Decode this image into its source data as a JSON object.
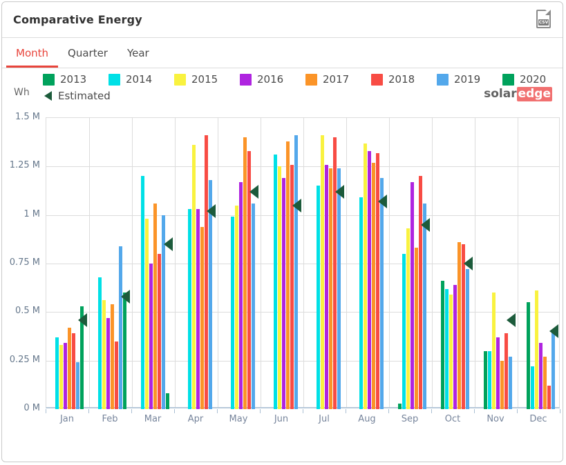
{
  "header": {
    "title": "Comparative Energy",
    "csv_label": "CSV"
  },
  "tabs": [
    {
      "label": "Month",
      "active": true
    },
    {
      "label": "Quarter",
      "active": false
    },
    {
      "label": "Year",
      "active": false
    }
  ],
  "logo": {
    "part1": "solar",
    "part2": "edge"
  },
  "colors": {
    "tab_active": "#e8443b",
    "estimated": "#1c5b3b",
    "logo_red": "#f17070",
    "axis_text": "#76849b",
    "grid": "#dcdcdc"
  },
  "chart_data": {
    "type": "bar",
    "title": "Comparative Energy",
    "unit_label": "Wh",
    "xlabel": "",
    "ylabel": "Wh",
    "ylim": [
      0,
      1.5
    ],
    "grid": true,
    "legend_position": "top",
    "categories": [
      "Jan",
      "Feb",
      "Mar",
      "Apr",
      "May",
      "Jun",
      "Jul",
      "Aug",
      "Sep",
      "Oct",
      "Nov",
      "Dec"
    ],
    "yticks": [
      "0 M",
      "0.25 M",
      "0.5 M",
      "0.75 M",
      "1 M",
      "1.25 M",
      "1.5 M"
    ],
    "value_unit": "M Wh",
    "series": [
      {
        "name": "2013",
        "color": "#00a25c",
        "values": [
          null,
          null,
          null,
          null,
          null,
          null,
          null,
          null,
          0.03,
          0.66,
          0.3,
          0.55
        ]
      },
      {
        "name": "2014",
        "color": "#00e0e6",
        "values": [
          0.37,
          0.68,
          1.2,
          1.03,
          0.99,
          1.31,
          1.15,
          1.09,
          0.8,
          0.62,
          0.3,
          0.22
        ]
      },
      {
        "name": "2015",
        "color": "#f9f23f",
        "values": [
          0.33,
          0.56,
          0.98,
          1.36,
          1.05,
          1.25,
          1.41,
          1.37,
          0.93,
          0.59,
          0.6,
          0.61
        ]
      },
      {
        "name": "2016",
        "color": "#af24e0",
        "values": [
          0.34,
          0.47,
          0.75,
          1.03,
          1.17,
          1.19,
          1.26,
          1.33,
          1.17,
          0.64,
          0.37,
          0.34
        ]
      },
      {
        "name": "2017",
        "color": "#fb9428",
        "values": [
          0.42,
          0.54,
          1.06,
          0.94,
          1.4,
          1.38,
          1.24,
          1.27,
          0.83,
          0.86,
          0.25,
          0.27
        ]
      },
      {
        "name": "2018",
        "color": "#f84c44",
        "values": [
          0.39,
          0.35,
          0.8,
          1.41,
          1.33,
          1.26,
          1.4,
          1.32,
          1.2,
          0.85,
          0.39,
          0.12
        ]
      },
      {
        "name": "2019",
        "color": "#53a8eb",
        "values": [
          0.24,
          0.84,
          1.0,
          1.18,
          1.06,
          1.41,
          1.24,
          1.19,
          1.06,
          0.72,
          0.27,
          0.41
        ]
      },
      {
        "name": "2020",
        "color": "#00a25c",
        "values": [
          0.53,
          0.6,
          0.08,
          null,
          null,
          null,
          null,
          null,
          null,
          null,
          null,
          null
        ]
      }
    ],
    "estimated": {
      "name": "Estimated",
      "color": "#1c5b3b",
      "values": [
        0.46,
        0.58,
        0.85,
        1.02,
        1.12,
        1.05,
        1.12,
        1.07,
        0.95,
        0.75,
        0.46,
        0.4
      ]
    }
  }
}
